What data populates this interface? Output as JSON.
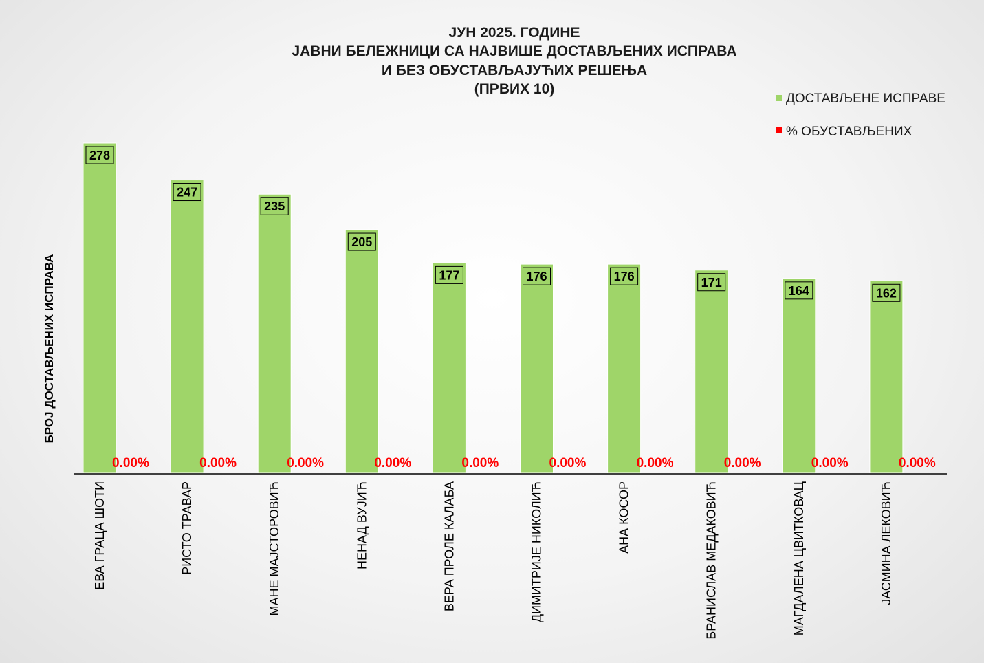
{
  "chart_data": {
    "type": "bar",
    "title": [
      "ЈУН 2025. ГОДИНЕ",
      "ЈАВНИ БЕЛЕЖНИЦИ СА НАЈВИШЕ ДОСТАВЉЕНИХ ИСПРАВА",
      "И БЕЗ ОБУСТАВЉАЈУЋИХ РЕШЕЊА",
      "(ПРВИХ 10)"
    ],
    "ylabel": "БРОЈ ДОСТАВЉЕНИХ ИСПРАВА",
    "ylim": [
      0,
      300
    ],
    "legend_position": "top-right",
    "grid": false,
    "categories": [
      "ЕВА ГРАЦА ШОТИ",
      "РИСТО ТРАВАР",
      "МАНЕ МАЈСТОРОВИЋ",
      "НЕНАД ВУЈИЋ",
      "ВЕРА ПРОЛЕ КАЛАБА",
      "ДИМИТРИЈЕ НИКОЛИЋ",
      "АНА КОСОР",
      "БРАНИСЛАВ МЕДАКОВИЋ",
      "МАГДАЛЕНА ЦВИТКОВАЦ",
      "ЈАСМИНА ЛЕКОВИЋ"
    ],
    "series": [
      {
        "name": "ДОСТАВЉЕНЕ ИСПРАВЕ",
        "color": "#9fd569",
        "values": [
          278,
          247,
          235,
          205,
          177,
          176,
          176,
          171,
          164,
          162
        ],
        "labels": [
          "278",
          "247",
          "235",
          "205",
          "177",
          "176",
          "176",
          "171",
          "164",
          "162"
        ]
      },
      {
        "name": "% ОБУСТАВЉЕНИХ",
        "color": "#ff0000",
        "values": [
          0,
          0,
          0,
          0,
          0,
          0,
          0,
          0,
          0,
          0
        ],
        "labels": [
          "0.00%",
          "0.00%",
          "0.00%",
          "0.00%",
          "0.00%",
          "0.00%",
          "0.00%",
          "0.00%",
          "0.00%",
          "0.00%"
        ]
      }
    ]
  }
}
